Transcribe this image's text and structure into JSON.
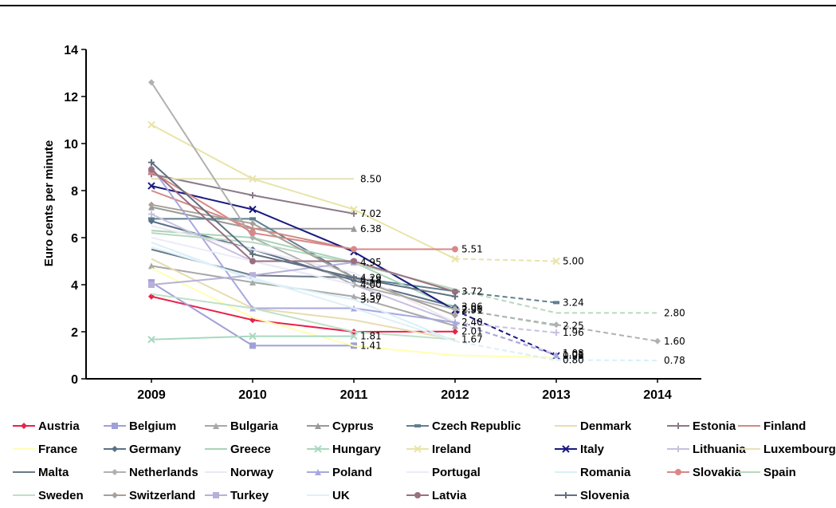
{
  "chart_data": {
    "type": "line",
    "ylabel": "Euro cents per minute",
    "xlabel": "",
    "categories": [
      "2009",
      "2010",
      "2011",
      "2012",
      "2013",
      "2014"
    ],
    "ylim": [
      0,
      14
    ],
    "yticks": [
      "0",
      "2",
      "4",
      "6",
      "8",
      "10",
      "12",
      "14"
    ],
    "legend_position": "bottom",
    "series": [
      {
        "name": "Austria",
        "color": "#e8224a",
        "marker": "diamond",
        "values": [
          3.5,
          2.5,
          2.0,
          2.01,
          null,
          null
        ],
        "labels": [
          null,
          null,
          null,
          "2.01",
          null,
          null
        ]
      },
      {
        "name": "Belgium",
        "color": "#a0a0d8",
        "marker": "square",
        "values": [
          4.1,
          1.41,
          1.41,
          null,
          null,
          null
        ],
        "labels": [
          null,
          null,
          "1.41",
          null,
          null,
          null
        ]
      },
      {
        "name": "Bulgaria",
        "color": "#a8a8a8",
        "marker": "triangle",
        "values": [
          4.8,
          4.1,
          3.5,
          2.25,
          null,
          null
        ],
        "labels": [
          null,
          null,
          "3.50",
          null,
          null,
          null
        ]
      },
      {
        "name": "Cyprus",
        "color": "#9a9a9a",
        "marker": "triangle",
        "values": [
          7.3,
          6.38,
          6.38,
          null,
          null,
          null
        ],
        "labels": [
          null,
          null,
          "6.38",
          null,
          null,
          null
        ]
      },
      {
        "name": "Czech Republic",
        "color": "#5f7f90",
        "marker": "dash",
        "values": [
          6.8,
          6.8,
          4.3,
          3.72,
          3.24,
          null
        ],
        "labels": [
          null,
          null,
          null,
          "3.72",
          "3.24",
          null
        ],
        "dashed_from": 3
      },
      {
        "name": "Denmark",
        "color": "#e8dcb0",
        "marker": "none",
        "values": [
          5.1,
          3.0,
          2.5,
          1.67,
          null,
          null
        ],
        "labels": [
          null,
          null,
          null,
          "1.67",
          null,
          null
        ]
      },
      {
        "name": "Estonia",
        "color": "#8a7a88",
        "marker": "plus",
        "values": [
          8.7,
          7.8,
          7.02,
          null,
          null,
          null
        ],
        "labels": [
          null,
          null,
          "7.02",
          null,
          null,
          null
        ]
      },
      {
        "name": "Finland",
        "color": "#d08a80",
        "marker": "none",
        "values": [
          8.0,
          6.4,
          5.5,
          null,
          null,
          null
        ],
        "labels": [
          null,
          null,
          null,
          null,
          null,
          null
        ]
      },
      {
        "name": "France",
        "color": "#ffffb0",
        "marker": "none",
        "values": [
          4.7,
          2.6,
          1.4,
          1.0,
          0.9,
          null
        ],
        "labels": [
          null,
          null,
          null,
          null,
          null,
          null
        ]
      },
      {
        "name": "Germany",
        "color": "#5a7088",
        "marker": "diamond",
        "values": [
          6.7,
          5.5,
          4.18,
          3.06,
          null,
          null
        ],
        "labels": [
          null,
          null,
          "4.18",
          "3.06",
          null,
          null
        ]
      },
      {
        "name": "Greece",
        "color": "#a8d4b8",
        "marker": "none",
        "values": [
          6.3,
          6.0,
          4.95,
          3.0,
          2.25,
          null
        ],
        "labels": [
          null,
          null,
          null,
          null,
          "2.25",
          null
        ],
        "dashed_from": 3
      },
      {
        "name": "Hungary",
        "color": "#a8d8c0",
        "marker": "x",
        "values": [
          1.67,
          1.81,
          1.81,
          null,
          null,
          null
        ],
        "labels": [
          null,
          null,
          "1.81",
          null,
          null,
          null
        ]
      },
      {
        "name": "Ireland",
        "color": "#e8e4a8",
        "marker": "x",
        "values": [
          10.8,
          8.5,
          7.2,
          5.1,
          5.0,
          null
        ],
        "labels": [
          null,
          null,
          null,
          null,
          "5.00",
          null
        ],
        "dashed_from": 3
      },
      {
        "name": "Italy",
        "color": "#1a1a80",
        "marker": "x",
        "values": [
          8.2,
          7.2,
          5.4,
          2.91,
          0.98,
          null
        ],
        "labels": [
          null,
          null,
          null,
          "2.91",
          "0.98",
          null
        ],
        "dashed_from": 3
      },
      {
        "name": "Lithuania",
        "color": "#c8c0e0",
        "marker": "plus",
        "values": [
          7.0,
          5.0,
          4.0,
          2.4,
          1.96,
          null
        ],
        "labels": [
          null,
          null,
          null,
          null,
          "1.96",
          null
        ],
        "dashed_from": 3
      },
      {
        "name": "Luxembourg",
        "color": "#e8e0b8",
        "marker": "none",
        "values": [
          8.5,
          8.5,
          8.5,
          null,
          null,
          null
        ],
        "labels": [
          null,
          null,
          "8.50",
          null,
          null,
          null
        ]
      },
      {
        "name": "Malta",
        "color": "#6a7a88",
        "marker": "none",
        "values": [
          5.5,
          4.4,
          4.3,
          null,
          null,
          null
        ],
        "labels": [
          null,
          null,
          null,
          null,
          null,
          null
        ]
      },
      {
        "name": "Netherlands",
        "color": "#b0b0b0",
        "marker": "diamond",
        "values": [
          12.6,
          6.0,
          4.0,
          2.96,
          2.3,
          1.6
        ],
        "labels": [
          null,
          null,
          "4.00",
          "2.96",
          null,
          "1.60"
        ],
        "dashed_from": 3
      },
      {
        "name": "Norway",
        "color": "#ece8f4",
        "marker": "none",
        "values": [
          6.5,
          5.5,
          4.5,
          2.4,
          1.08,
          null
        ],
        "labels": [
          null,
          null,
          null,
          null,
          "1.08",
          null
        ],
        "dashed_from": 3
      },
      {
        "name": "Poland",
        "color": "#a8a8e0",
        "marker": "triangle",
        "values": [
          9.0,
          3.0,
          3.0,
          2.4,
          1.01,
          null
        ],
        "labels": [
          null,
          null,
          null,
          "2.40",
          "1.01",
          null
        ],
        "dashed_from": 3
      },
      {
        "name": "Portugal",
        "color": "#ececf8",
        "marker": "none",
        "values": [
          6.0,
          5.0,
          4.0,
          null,
          null,
          null
        ],
        "labels": [
          null,
          null,
          null,
          null,
          null,
          null
        ]
      },
      {
        "name": "Romania",
        "color": "#d8f0f8",
        "marker": "none",
        "values": [
          5.8,
          4.2,
          3.37,
          1.6,
          0.8,
          0.78
        ],
        "labels": [
          null,
          null,
          "3.37",
          null,
          "0.80",
          "0.78"
        ],
        "dashed_from": 3
      },
      {
        "name": "Slovakia",
        "color": "#d88888",
        "marker": "circle",
        "values": [
          8.8,
          6.2,
          5.51,
          5.51,
          null,
          null
        ],
        "labels": [
          null,
          null,
          null,
          "5.51",
          null,
          null
        ]
      },
      {
        "name": "Spain",
        "color": "#b8d8c0",
        "marker": "none",
        "values": [
          6.2,
          5.8,
          4.9,
          3.8,
          2.8,
          2.8
        ],
        "labels": [
          null,
          null,
          null,
          null,
          null,
          "2.80"
        ],
        "dashed_from": 3
      },
      {
        "name": "Sweden",
        "color": "#c0e0c8",
        "marker": "none",
        "values": [
          3.6,
          3.0,
          2.0,
          1.67,
          null,
          null
        ],
        "labels": [
          null,
          null,
          null,
          null,
          null,
          null
        ]
      },
      {
        "name": "Switzerland",
        "color": "#a8a098",
        "marker": "diamond",
        "values": [
          7.4,
          6.6,
          4.29,
          2.7,
          null,
          null
        ],
        "labels": [
          null,
          null,
          "4.29",
          null,
          null,
          null
        ]
      },
      {
        "name": "Turkey",
        "color": "#b8b0d8",
        "marker": "square",
        "values": [
          4.0,
          4.4,
          4.95,
          null,
          null,
          null
        ],
        "labels": [
          null,
          null,
          "4.95",
          null,
          null,
          null
        ]
      },
      {
        "name": "UK",
        "color": "#e0f0f8",
        "marker": "none",
        "values": [
          5.6,
          4.3,
          3.0,
          1.6,
          0.78,
          null
        ],
        "labels": [
          null,
          null,
          null,
          null,
          null,
          null
        ],
        "dashed_from": 3
      },
      {
        "name": "Latvia",
        "color": "#9a7080",
        "marker": "circle",
        "values": [
          8.9,
          5.0,
          5.0,
          3.7,
          null,
          null
        ],
        "labels": [
          null,
          null,
          null,
          null,
          null,
          null
        ]
      },
      {
        "name": "Slovenia",
        "color": "#607080",
        "marker": "plus",
        "values": [
          9.2,
          5.3,
          4.3,
          3.5,
          null,
          null
        ],
        "labels": [
          null,
          null,
          null,
          null,
          null,
          null
        ]
      }
    ]
  }
}
